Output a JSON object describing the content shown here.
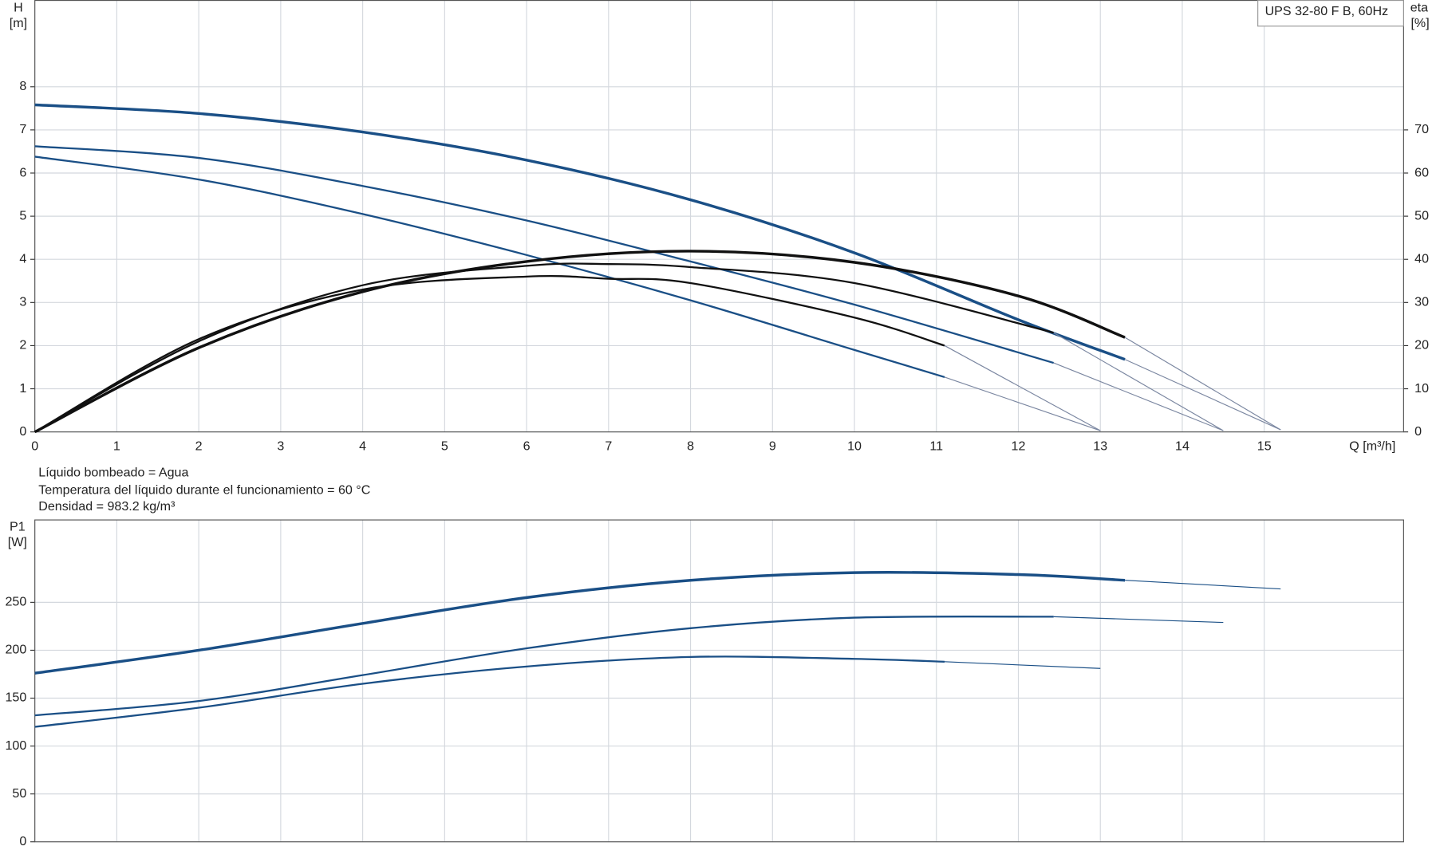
{
  "chart_data": [
    {
      "type": "line",
      "legend_box": "UPS 32-80 F B, 60Hz",
      "ylabel": "H",
      "yunit": "[m]",
      "y2label": "eta",
      "y2unit": "[%]",
      "xlabel": "Q [m³/h]",
      "annotations": [
        "Líquido bombeado = Agua",
        "Temperatura del líquido durante el funcionamiento = 60 °C",
        "Densidad = 983.2 kg/m³"
      ],
      "xlim": [
        0,
        16.7
      ],
      "xticks": [
        0,
        1,
        2,
        3,
        4,
        5,
        6,
        7,
        8,
        9,
        10,
        11,
        12,
        13,
        14,
        15
      ],
      "ylim": [
        0,
        10
      ],
      "yticks": [
        0,
        1,
        2,
        3,
        4,
        5,
        6,
        7,
        8
      ],
      "y2lim": [
        0,
        100
      ],
      "y2ticks": [
        0,
        10,
        20,
        30,
        40,
        50,
        60,
        70
      ],
      "grid": true,
      "series": [
        {
          "color": "#1a4f86",
          "line_width": 3,
          "x": [
            0,
            2,
            4,
            6,
            8,
            10,
            12,
            13.3
          ],
          "values": [
            7.58,
            7.38,
            6.95,
            6.3,
            5.38,
            4.15,
            2.6,
            1.68
          ]
        },
        {
          "color": "#7a86a0",
          "line_width": 1,
          "x": [
            13.3,
            15.2
          ],
          "values": [
            1.68,
            0.05
          ]
        },
        {
          "color": "#1a4f86",
          "line_width": 2,
          "x": [
            0,
            2,
            4,
            6,
            8,
            10,
            12.43
          ],
          "values": [
            6.62,
            6.35,
            5.7,
            4.9,
            3.95,
            2.95,
            1.6
          ]
        },
        {
          "color": "#7a86a0",
          "line_width": 1,
          "x": [
            12.43,
            14.5
          ],
          "values": [
            1.6,
            0.03
          ]
        },
        {
          "color": "#1a4f86",
          "line_width": 2,
          "x": [
            0,
            2,
            4,
            6,
            8,
            10,
            11.1
          ],
          "values": [
            6.38,
            5.85,
            5.05,
            4.1,
            3.05,
            1.9,
            1.27
          ]
        },
        {
          "color": "#7a86a0",
          "line_width": 1,
          "x": [
            11.1,
            13
          ],
          "values": [
            1.27,
            0.03
          ]
        },
        {
          "color": "#111111",
          "line_width": 3,
          "axis": "y2",
          "x": [
            0,
            2,
            4,
            6,
            8,
            10,
            12,
            13.3
          ],
          "values": [
            0,
            19.5,
            32.5,
            39.5,
            41.9,
            39.3,
            31.5,
            21.9
          ]
        },
        {
          "color": "#7a86a0",
          "line_width": 1,
          "axis": "y2",
          "x": [
            13.3,
            15.2
          ],
          "values": [
            21.9,
            0.5
          ]
        },
        {
          "color": "#111111",
          "line_width": 2,
          "axis": "y2",
          "x": [
            0,
            2,
            4,
            6,
            7,
            8,
            10,
            12.43
          ],
          "values": [
            0,
            21,
            34,
            38.5,
            38.9,
            38.2,
            34.5,
            23
          ]
        },
        {
          "color": "#7a86a0",
          "line_width": 1,
          "axis": "y2",
          "x": [
            12.43,
            14.5
          ],
          "values": [
            23,
            0.3
          ]
        },
        {
          "color": "#111111",
          "line_width": 2,
          "axis": "y2",
          "x": [
            0,
            2,
            4,
            6,
            7,
            8,
            10,
            11.1
          ],
          "values": [
            0,
            21.5,
            33,
            36,
            35.5,
            34.5,
            26.5,
            20
          ]
        },
        {
          "color": "#7a86a0",
          "line_width": 1,
          "axis": "y2",
          "x": [
            11.1,
            13
          ],
          "values": [
            20,
            0.3
          ]
        }
      ]
    },
    {
      "type": "line",
      "ylabel": "P1",
      "yunit": "[W]",
      "xlim": [
        0,
        16.7
      ],
      "xticks": [
        0,
        1,
        2,
        3,
        4,
        5,
        6,
        7,
        8,
        9,
        10,
        11,
        12,
        13,
        14,
        15
      ],
      "ylim": [
        0,
        336
      ],
      "yticks": [
        0,
        50,
        100,
        150,
        200,
        250
      ],
      "grid": true,
      "series": [
        {
          "color": "#1a4f86",
          "line_width": 3,
          "x": [
            0,
            2,
            4,
            6,
            8,
            10,
            12,
            13.3
          ],
          "values": [
            176,
            200,
            228,
            255,
            273,
            281,
            279,
            273
          ]
        },
        {
          "color": "#1a4f86",
          "line_width": 1,
          "x": [
            13.3,
            15.2
          ],
          "values": [
            273,
            264
          ]
        },
        {
          "color": "#1a4f86",
          "line_width": 2,
          "x": [
            0,
            2,
            4,
            6,
            8,
            10,
            12.43
          ],
          "values": [
            132,
            147,
            174,
            202,
            223,
            234,
            235
          ]
        },
        {
          "color": "#1a4f86",
          "line_width": 1,
          "x": [
            12.43,
            14.5
          ],
          "values": [
            235,
            229
          ]
        },
        {
          "color": "#1a4f86",
          "line_width": 2,
          "x": [
            0,
            2,
            4,
            6,
            8,
            10,
            11.1
          ],
          "values": [
            120,
            140,
            165,
            183,
            193,
            191,
            188
          ]
        },
        {
          "color": "#1a4f86",
          "line_width": 1,
          "x": [
            11.1,
            13
          ],
          "values": [
            188,
            181
          ]
        }
      ]
    }
  ]
}
